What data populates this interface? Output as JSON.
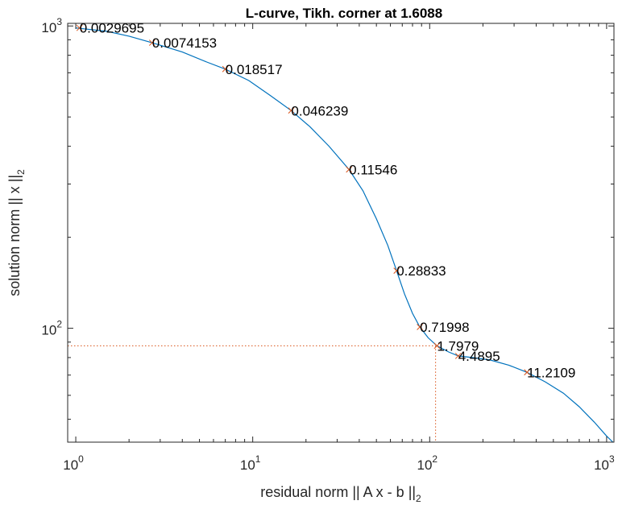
{
  "chart_data": {
    "type": "line",
    "title": "L-curve, Tikh. corner at 1.6088",
    "xlabel": "residual norm || A x - b ||",
    "xlabel_subscript": "2",
    "ylabel": "solution norm || x ||",
    "ylabel_subscript": "2",
    "x_scale": "log",
    "y_scale": "log",
    "xlim": [
      0.9,
      1100
    ],
    "ylim": [
      42,
      1020
    ],
    "x_ticks": [
      {
        "base": "10",
        "exp": "0",
        "value": 1
      },
      {
        "base": "10",
        "exp": "1",
        "value": 10
      },
      {
        "base": "10",
        "exp": "2",
        "value": 100
      },
      {
        "base": "10",
        "exp": "3",
        "value": 1000
      }
    ],
    "y_ticks": [
      {
        "base": "10",
        "exp": "2",
        "value": 100
      },
      {
        "base": "10",
        "exp": "3",
        "value": 1000
      }
    ],
    "grid": false,
    "colors": {
      "curve": "#0072bd",
      "markers": "#d95319",
      "corner_lines": "#d95319"
    },
    "curve": [
      [
        1.0,
        985
      ],
      [
        1.5,
        960
      ],
      [
        2.0,
        925
      ],
      [
        2.7,
        880
      ],
      [
        4.0,
        820
      ],
      [
        5.5,
        760
      ],
      [
        7.0,
        720
      ],
      [
        9.5,
        660
      ],
      [
        12.5,
        590
      ],
      [
        16.5,
        525
      ],
      [
        21.0,
        465
      ],
      [
        27.0,
        400
      ],
      [
        35.0,
        335
      ],
      [
        42.0,
        285
      ],
      [
        50.0,
        230
      ],
      [
        58.0,
        188
      ],
      [
        65.0,
        155
      ],
      [
        72.0,
        130
      ],
      [
        80.0,
        112
      ],
      [
        88.0,
        101
      ],
      [
        98.0,
        93
      ],
      [
        110.0,
        87.5
      ],
      [
        128.0,
        83.5
      ],
      [
        145.0,
        81
      ],
      [
        175.0,
        80
      ],
      [
        220.0,
        78.5
      ],
      [
        280.0,
        75.5
      ],
      [
        355.0,
        71.5
      ],
      [
        450.0,
        66.5
      ],
      [
        570.0,
        61
      ],
      [
        700.0,
        55
      ],
      [
        850.0,
        49
      ],
      [
        1000.0,
        44
      ],
      [
        1085.0,
        42
      ]
    ],
    "points": [
      {
        "label": "0.0029695",
        "x": 1.05,
        "y": 985
      },
      {
        "label": "0.0074153",
        "x": 2.7,
        "y": 880
      },
      {
        "label": "0.018517",
        "x": 7.0,
        "y": 720
      },
      {
        "label": "0.046239",
        "x": 16.5,
        "y": 525
      },
      {
        "label": "0.11546",
        "x": 35.0,
        "y": 335
      },
      {
        "label": "0.28833",
        "x": 65.0,
        "y": 155
      },
      {
        "label": "0.71998",
        "x": 88.0,
        "y": 101
      },
      {
        "label": "1.7979",
        "x": 110.0,
        "y": 87.5
      },
      {
        "label": "4.4895",
        "x": 145.0,
        "y": 81
      },
      {
        "label": "11.2109",
        "x": 355.0,
        "y": 71.5
      }
    ],
    "corner": {
      "x": 108,
      "y": 87.5
    }
  }
}
